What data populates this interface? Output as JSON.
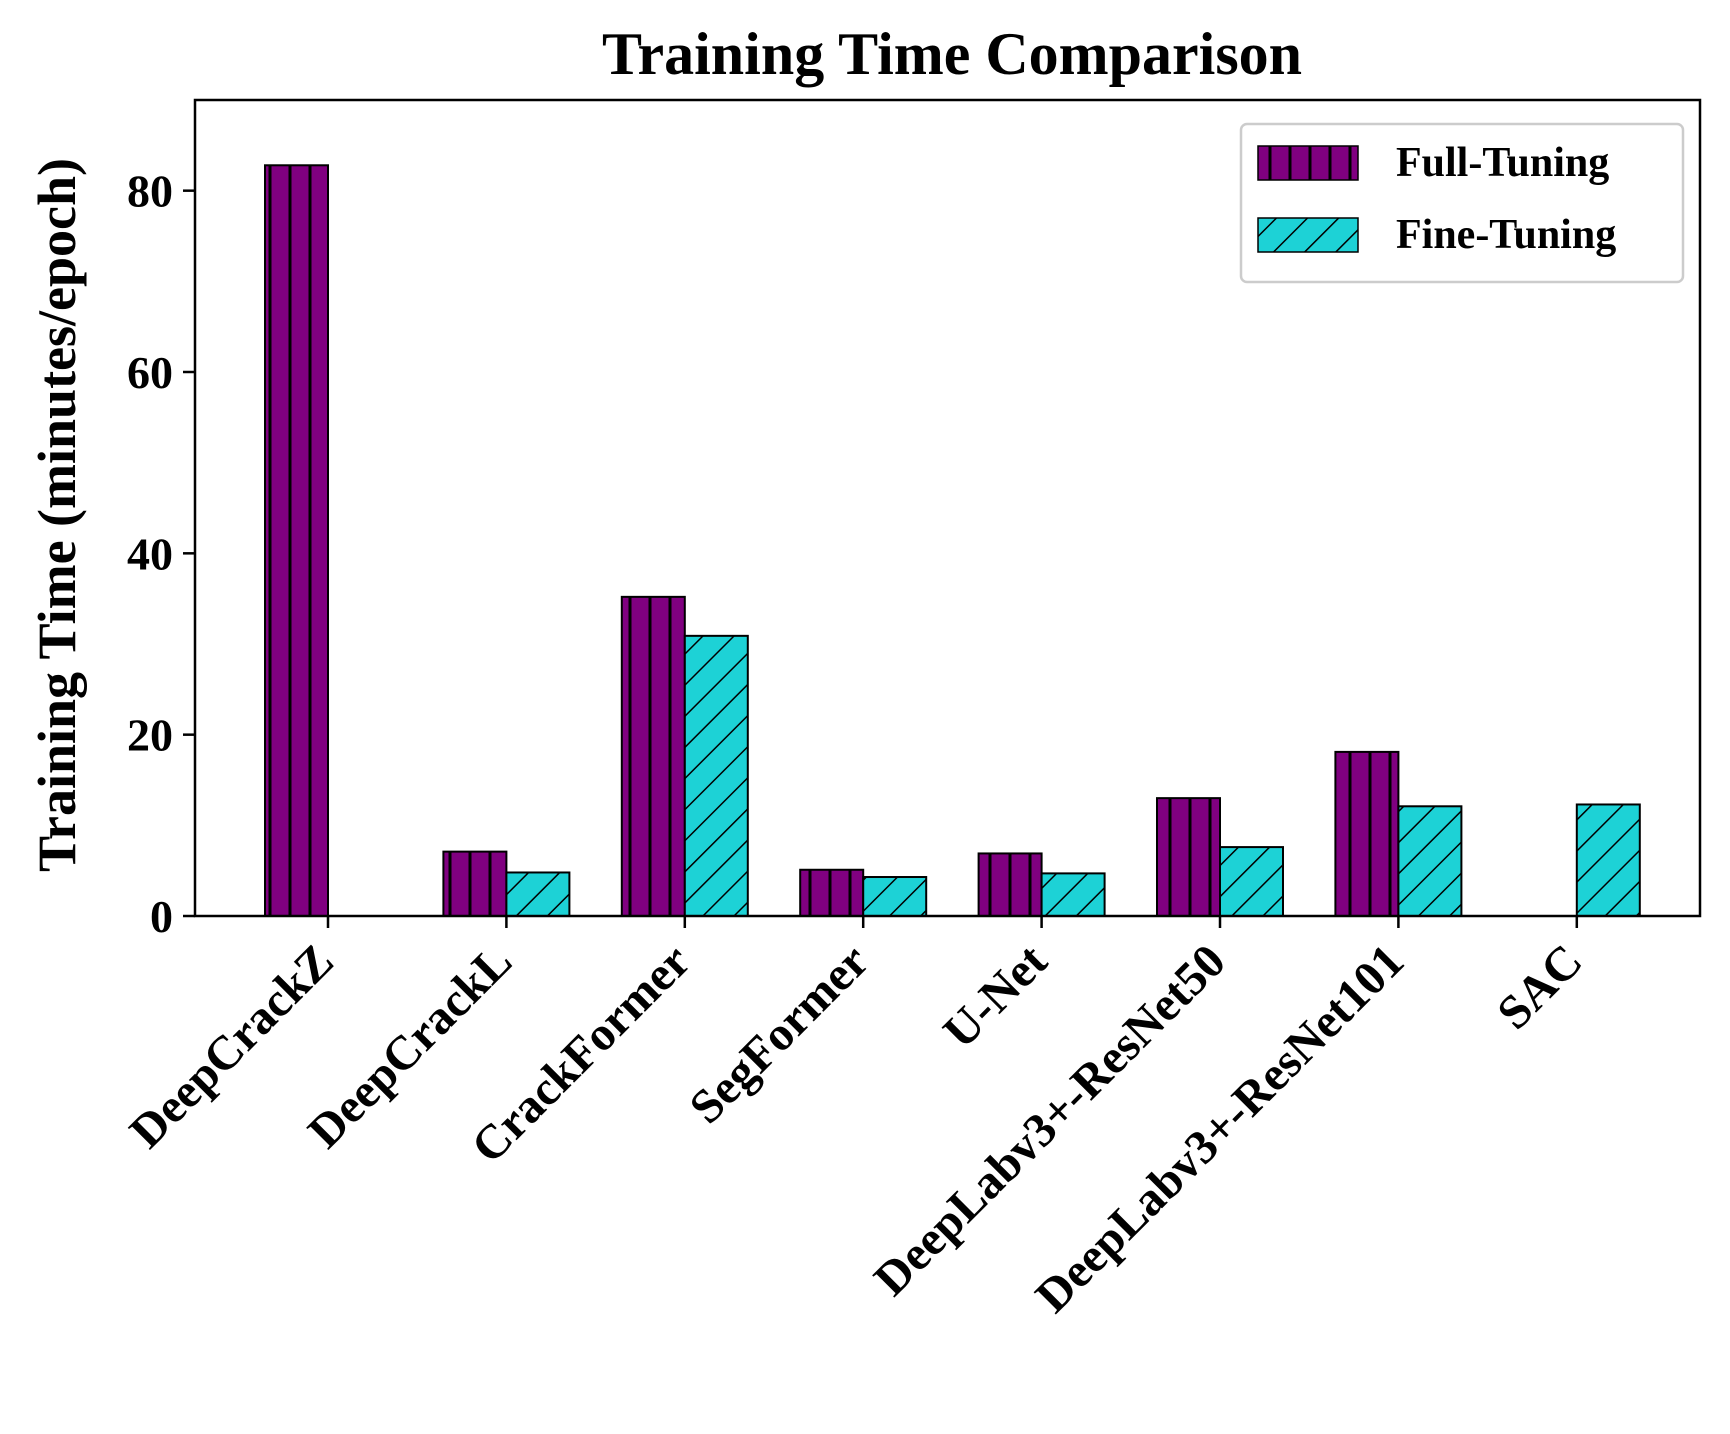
{
  "chart_data": {
    "type": "bar",
    "title": "Training Time Comparison",
    "xlabel": "",
    "ylabel": "Training Time (minutes/epoch)",
    "ylim": [
      0,
      90
    ],
    "yticks": [
      0,
      20,
      40,
      60,
      80
    ],
    "categories": [
      "DeepCrackZ",
      "DeepCrackL",
      "CrackFormer",
      "SegFormer",
      "U-Net",
      "DeepLabv3+-ResNet50",
      "DeepLabv3+-ResNet101",
      "SAC"
    ],
    "series": [
      {
        "name": "Full-Tuning",
        "color": "#800080",
        "hatch": "vertical",
        "values": [
          82.8,
          7.1,
          35.2,
          5.1,
          6.9,
          13.0,
          18.1,
          null
        ]
      },
      {
        "name": "Fine-Tuning",
        "color": "#1dd2d6",
        "hatch": "diagonal",
        "values": [
          null,
          4.8,
          30.9,
          4.3,
          4.7,
          7.6,
          12.1,
          12.3
        ]
      }
    ],
    "grid": false,
    "legend_position": "top-right"
  }
}
